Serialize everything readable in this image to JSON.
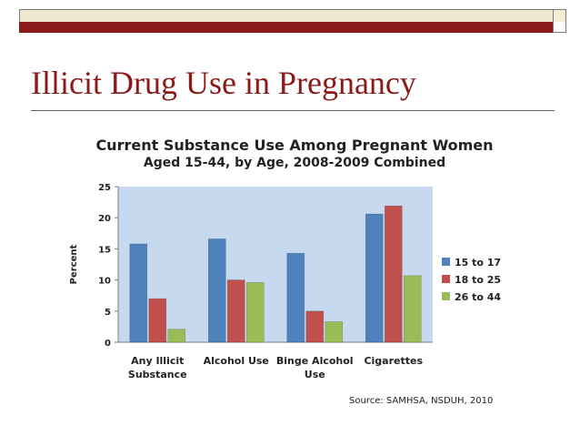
{
  "slide": {
    "title": "Illicit Drug Use in Pregnancy",
    "source": "Source: SAMHSA, NSDUH, 2010"
  },
  "colors": {
    "accent_red": "#8b1a1a",
    "plot_bg": "#c6d9ee",
    "series": [
      "#4f81bd",
      "#c0504d",
      "#9bbb59"
    ]
  },
  "chart_data": {
    "type": "bar",
    "title": "Current Substance Use Among Pregnant Women",
    "subtitle": "Aged 15-44, by Age, 2008-2009 Combined",
    "xlabel": "",
    "ylabel": "Percent",
    "ylim": [
      0,
      25
    ],
    "yticks": [
      0,
      5,
      10,
      15,
      20,
      25
    ],
    "grid": false,
    "legend_position": "right",
    "categories": [
      [
        "Any Illicit",
        "Substance"
      ],
      [
        "Alcohol Use"
      ],
      [
        "Binge Alcohol",
        "Use"
      ],
      [
        "Cigarettes"
      ]
    ],
    "series": [
      {
        "name": "15 to 17",
        "values": [
          15.8,
          16.6,
          14.3,
          20.6
        ]
      },
      {
        "name": "18 to 25",
        "values": [
          7.0,
          10.0,
          5.0,
          21.9
        ]
      },
      {
        "name": "26 to 44",
        "values": [
          2.1,
          9.6,
          3.3,
          10.7
        ]
      }
    ]
  }
}
